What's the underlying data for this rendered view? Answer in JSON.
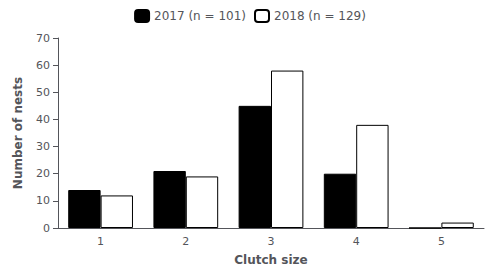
{
  "chart_data": {
    "type": "bar",
    "xlabel": "Clutch size",
    "ylabel": "Number of nests",
    "categories": [
      1,
      2,
      3,
      4,
      5
    ],
    "series": [
      {
        "name": "2017 (n = 101)",
        "color": "#000000",
        "values": [
          14,
          21,
          45,
          20,
          0
        ]
      },
      {
        "name": "2018 (n = 129)",
        "color": "#ffffff",
        "values": [
          12,
          19,
          58,
          38,
          2
        ]
      }
    ],
    "ylim": [
      0,
      70
    ],
    "yticks": [
      0,
      10,
      20,
      30,
      40,
      50,
      60,
      70
    ],
    "legend": "top",
    "grid": false
  }
}
